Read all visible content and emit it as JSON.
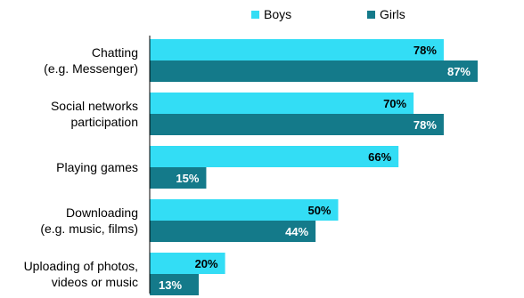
{
  "chart_data": {
    "type": "bar",
    "orientation": "horizontal",
    "title": "",
    "xlabel": "",
    "ylabel": "",
    "xlim": [
      0,
      100
    ],
    "grid": false,
    "legend_position": "top",
    "categories": [
      [
        "Chatting",
        "(e.g. Messenger)"
      ],
      [
        "Social networks",
        "participation"
      ],
      [
        "Playing games"
      ],
      [
        "Downloading",
        "(e.g. music, films)"
      ],
      [
        "Uploading of photos,",
        "videos or music"
      ]
    ],
    "series": [
      {
        "name": "Boys",
        "color": "#33ddf5",
        "label_color": "#000000",
        "values": [
          78,
          70,
          66,
          50,
          20
        ],
        "labels": [
          "78%",
          "70%",
          "66%",
          "50%",
          "20%"
        ]
      },
      {
        "name": "Girls",
        "color": "#147a8a",
        "label_color": "#ffffff",
        "values": [
          87,
          78,
          15,
          44,
          13
        ],
        "labels": [
          "87%",
          "78%",
          "15%",
          "44%",
          "13%"
        ]
      }
    ]
  }
}
